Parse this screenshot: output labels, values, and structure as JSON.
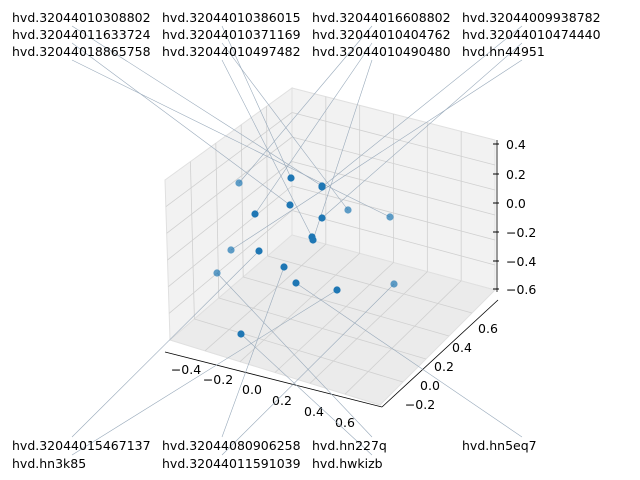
{
  "chart_data": {
    "type": "scatter3d",
    "title": "",
    "xlabel": "",
    "ylabel": "",
    "zlabel": "",
    "x_ticks": [
      "−0.4",
      "−0.2",
      "0.0",
      "0.2",
      "0.4",
      "0.6"
    ],
    "y_ticks": [
      "−0.2",
      "0.0",
      "0.2",
      "0.4",
      "0.6"
    ],
    "z_ticks": [
      "0.4",
      "0.2",
      "0.0",
      "−0.2",
      "−0.4",
      "−0.6"
    ],
    "xlim": [
      -0.5,
      0.7
    ],
    "ylim": [
      -0.3,
      0.7
    ],
    "zlim": [
      -0.6,
      0.4
    ],
    "grid": true,
    "marker_color": "#1f77b4",
    "points": [
      {
        "label": "hvd.32044010308802"
      },
      {
        "label": "hvd.32044010386015"
      },
      {
        "label": "hvd.32044016608802"
      },
      {
        "label": "hvd.32044009938782"
      },
      {
        "label": "hvd.32044011633724"
      },
      {
        "label": "hvd.32044010371169"
      },
      {
        "label": "hvd.32044010404762"
      },
      {
        "label": "hvd.32044010474440"
      },
      {
        "label": "hvd.32044018865758"
      },
      {
        "label": "hvd.32044010497482"
      },
      {
        "label": "hvd.32044010490480"
      },
      {
        "label": "hvd.hn44951"
      },
      {
        "label": "hvd.32044015467137"
      },
      {
        "label": "hvd.32044080906258"
      },
      {
        "label": "hvd.hn227q"
      },
      {
        "label": "hvd.hn5eq7"
      },
      {
        "label": "hvd.hn3k85"
      },
      {
        "label": "hvd.32044011591039"
      },
      {
        "label": "hvd.hwkizb"
      }
    ]
  }
}
